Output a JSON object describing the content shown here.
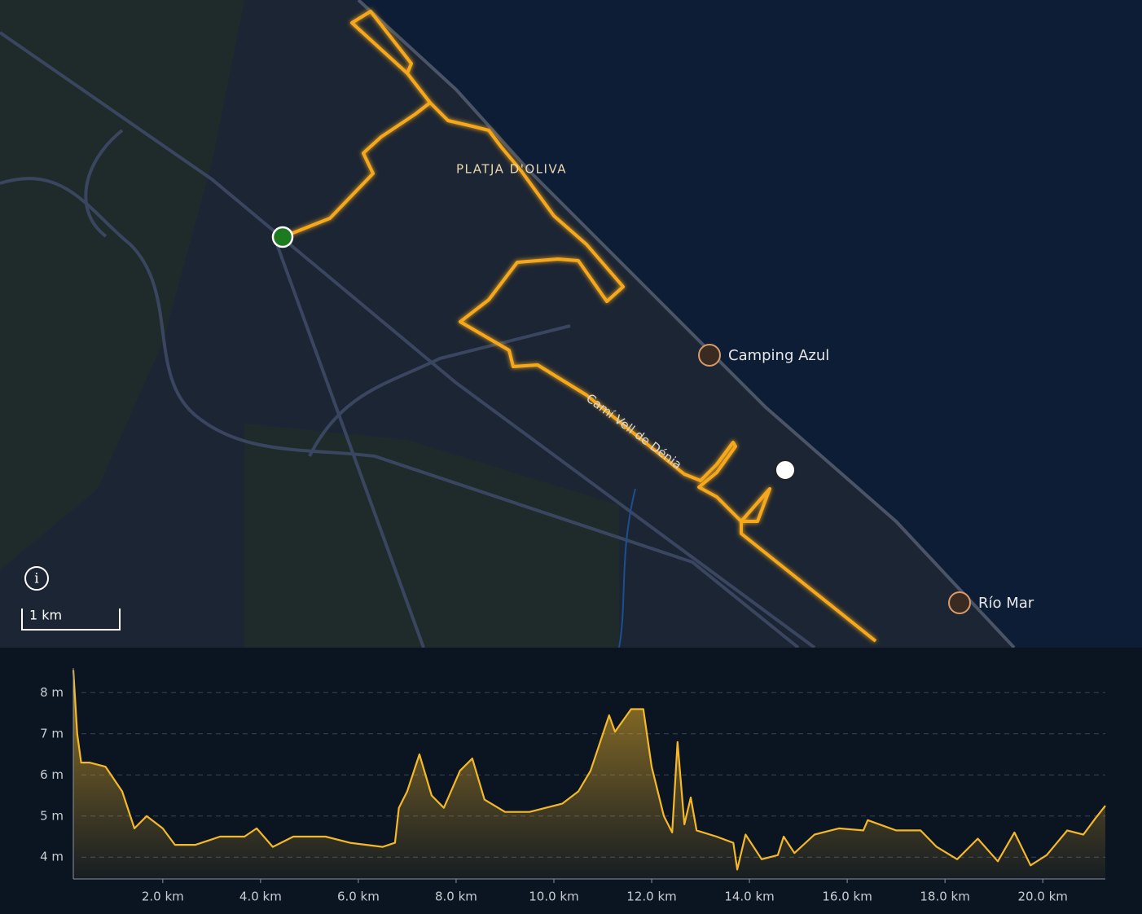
{
  "map": {
    "place_label": "PLATJA D'OLIVA",
    "road_label": "Camí Vell de Dénia",
    "pois": [
      "Camping Azul",
      "Río Mar"
    ],
    "info_icon": "i",
    "scale": "1 km"
  },
  "chart_data": {
    "type": "area",
    "color": "#f5b829",
    "x": [
      0.17,
      0.25,
      0.33,
      0.5,
      0.83,
      1.17,
      1.42,
      1.67,
      2.0,
      2.25,
      2.67,
      3.17,
      3.67,
      3.92,
      4.25,
      4.67,
      5.33,
      5.83,
      6.5,
      6.75,
      6.83,
      7.0,
      7.25,
      7.5,
      7.75,
      8.08,
      8.33,
      8.58,
      9.0,
      9.5,
      10.17,
      10.5,
      10.75,
      11.13,
      11.25,
      11.58,
      11.83,
      12.0,
      12.25,
      12.42,
      12.53,
      12.67,
      12.8,
      12.92,
      13.33,
      13.67,
      13.75,
      13.92,
      14.25,
      14.58,
      14.7,
      14.92,
      15.33,
      15.83,
      16.33,
      16.42,
      17.0,
      17.5,
      17.83,
      18.25,
      18.67,
      19.08,
      19.42,
      19.75,
      20.08,
      20.5,
      20.83,
      21.08,
      21.28
    ],
    "values": [
      8.55,
      7.0,
      6.3,
      6.3,
      6.2,
      5.6,
      4.7,
      5.0,
      4.7,
      4.3,
      4.3,
      4.5,
      4.5,
      4.7,
      4.25,
      4.5,
      4.5,
      4.35,
      4.25,
      4.35,
      5.2,
      5.6,
      6.5,
      5.5,
      5.2,
      6.1,
      6.4,
      5.4,
      5.1,
      5.1,
      5.3,
      5.6,
      6.1,
      7.45,
      7.05,
      7.6,
      7.6,
      6.2,
      5.0,
      4.6,
      6.8,
      4.8,
      5.45,
      4.65,
      4.5,
      4.35,
      3.7,
      4.55,
      3.95,
      4.05,
      4.5,
      4.1,
      4.55,
      4.7,
      4.65,
      4.9,
      4.65,
      4.65,
      4.25,
      3.95,
      4.45,
      3.9,
      4.6,
      3.8,
      4.05,
      4.65,
      4.55,
      4.95,
      5.25
    ],
    "xlim": [
      0.17,
      21.28
    ],
    "ylim": [
      3.47,
      8.6
    ],
    "xticks": [
      {
        "value": 2,
        "label": "2.0 km"
      },
      {
        "value": 4,
        "label": "4.0 km"
      },
      {
        "value": 6,
        "label": "6.0 km"
      },
      {
        "value": 8,
        "label": "8.0 km"
      },
      {
        "value": 10,
        "label": "10.0 km"
      },
      {
        "value": 12,
        "label": "12.0 km"
      },
      {
        "value": 14,
        "label": "14.0 km"
      },
      {
        "value": 16,
        "label": "16.0 km"
      },
      {
        "value": 18,
        "label": "18.0 km"
      },
      {
        "value": 20,
        "label": "20.0 km"
      }
    ],
    "yticks": [
      {
        "value": 4,
        "label": "4 m"
      },
      {
        "value": 5,
        "label": "5 m"
      },
      {
        "value": 6,
        "label": "6 m"
      },
      {
        "value": 7,
        "label": "7 m"
      },
      {
        "value": 8,
        "label": "8 m"
      }
    ],
    "grid": true
  }
}
